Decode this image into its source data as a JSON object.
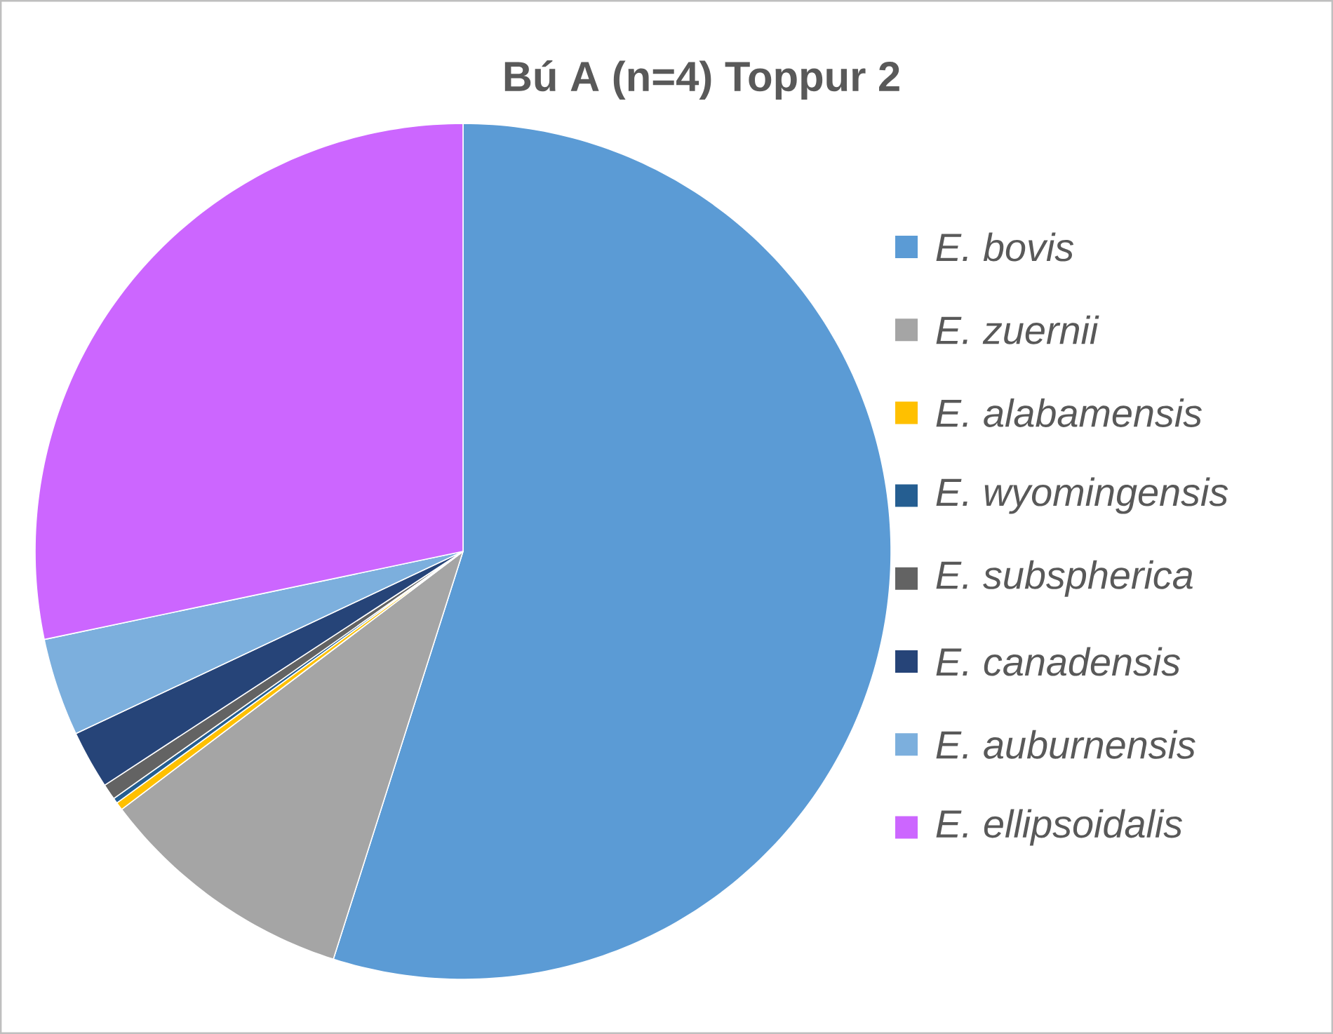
{
  "chart_data": {
    "type": "pie",
    "title": "Bú A (n=4) Toppur 2",
    "categories": [
      "E. bovis",
      "E. zuernii",
      "E. alabamensis",
      "E. wyomingensis",
      "E. subspherica",
      "E. canadensis",
      "E. auburnensis",
      "E. ellipsoidalis"
    ],
    "values": [
      54.9,
      9.8,
      0.3,
      0.2,
      0.6,
      2.2,
      3.7,
      28.3
    ],
    "colors": [
      "#5b9bd5",
      "#a5a5a5",
      "#ffc000",
      "#255e91",
      "#636363",
      "#264478",
      "#7cafdd",
      "#cc66ff"
    ],
    "legend": "right"
  }
}
